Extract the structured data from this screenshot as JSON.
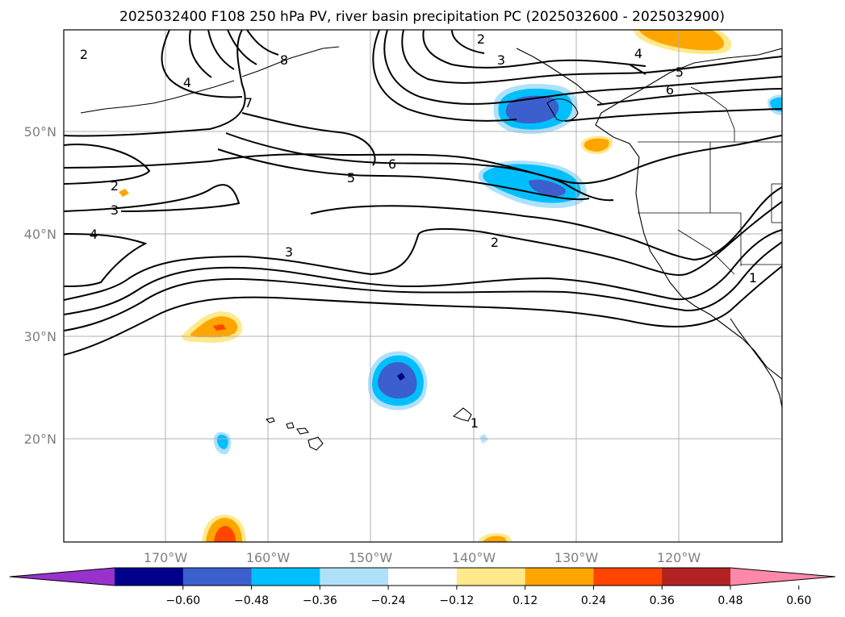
{
  "title": "2025032400 F108 250 hPa PV, river basin precipitation PC (2025032600 - 2025032900)",
  "map": {
    "lat_labels": [
      "50°N",
      "40°N",
      "30°N",
      "20°N"
    ],
    "lon_labels": [
      "170°W",
      "160°W",
      "150°W",
      "140°W",
      "130°W",
      "120°W"
    ],
    "grid": true
  },
  "contour_labels": [
    "2",
    "2",
    "8",
    "3",
    "4",
    "5",
    "6",
    "4",
    "7",
    "6",
    "5",
    "2",
    "3",
    "4",
    "3",
    "2",
    "1",
    "1"
  ],
  "colorbar": {
    "ticks": [
      "−0.60",
      "−0.48",
      "−0.36",
      "−0.24",
      "−0.12",
      "0.12",
      "0.24",
      "0.36",
      "0.48",
      "0.60"
    ],
    "colors": [
      "#9932cc",
      "#00008b",
      "#3b5fcd",
      "#00bfff",
      "#afe1fa",
      "#ffffff",
      "#ffe98a",
      "#ffa500",
      "#ff4500",
      "#b22222",
      "#ff88aa"
    ],
    "extend": "both"
  },
  "colors": {
    "neg_dark": "#3b5fcd",
    "neg_mid": "#00bfff",
    "neg_light": "#afe1fa",
    "pos_light": "#ffe98a",
    "pos_mid": "#ffa500",
    "pos_dark": "#ff4500"
  }
}
